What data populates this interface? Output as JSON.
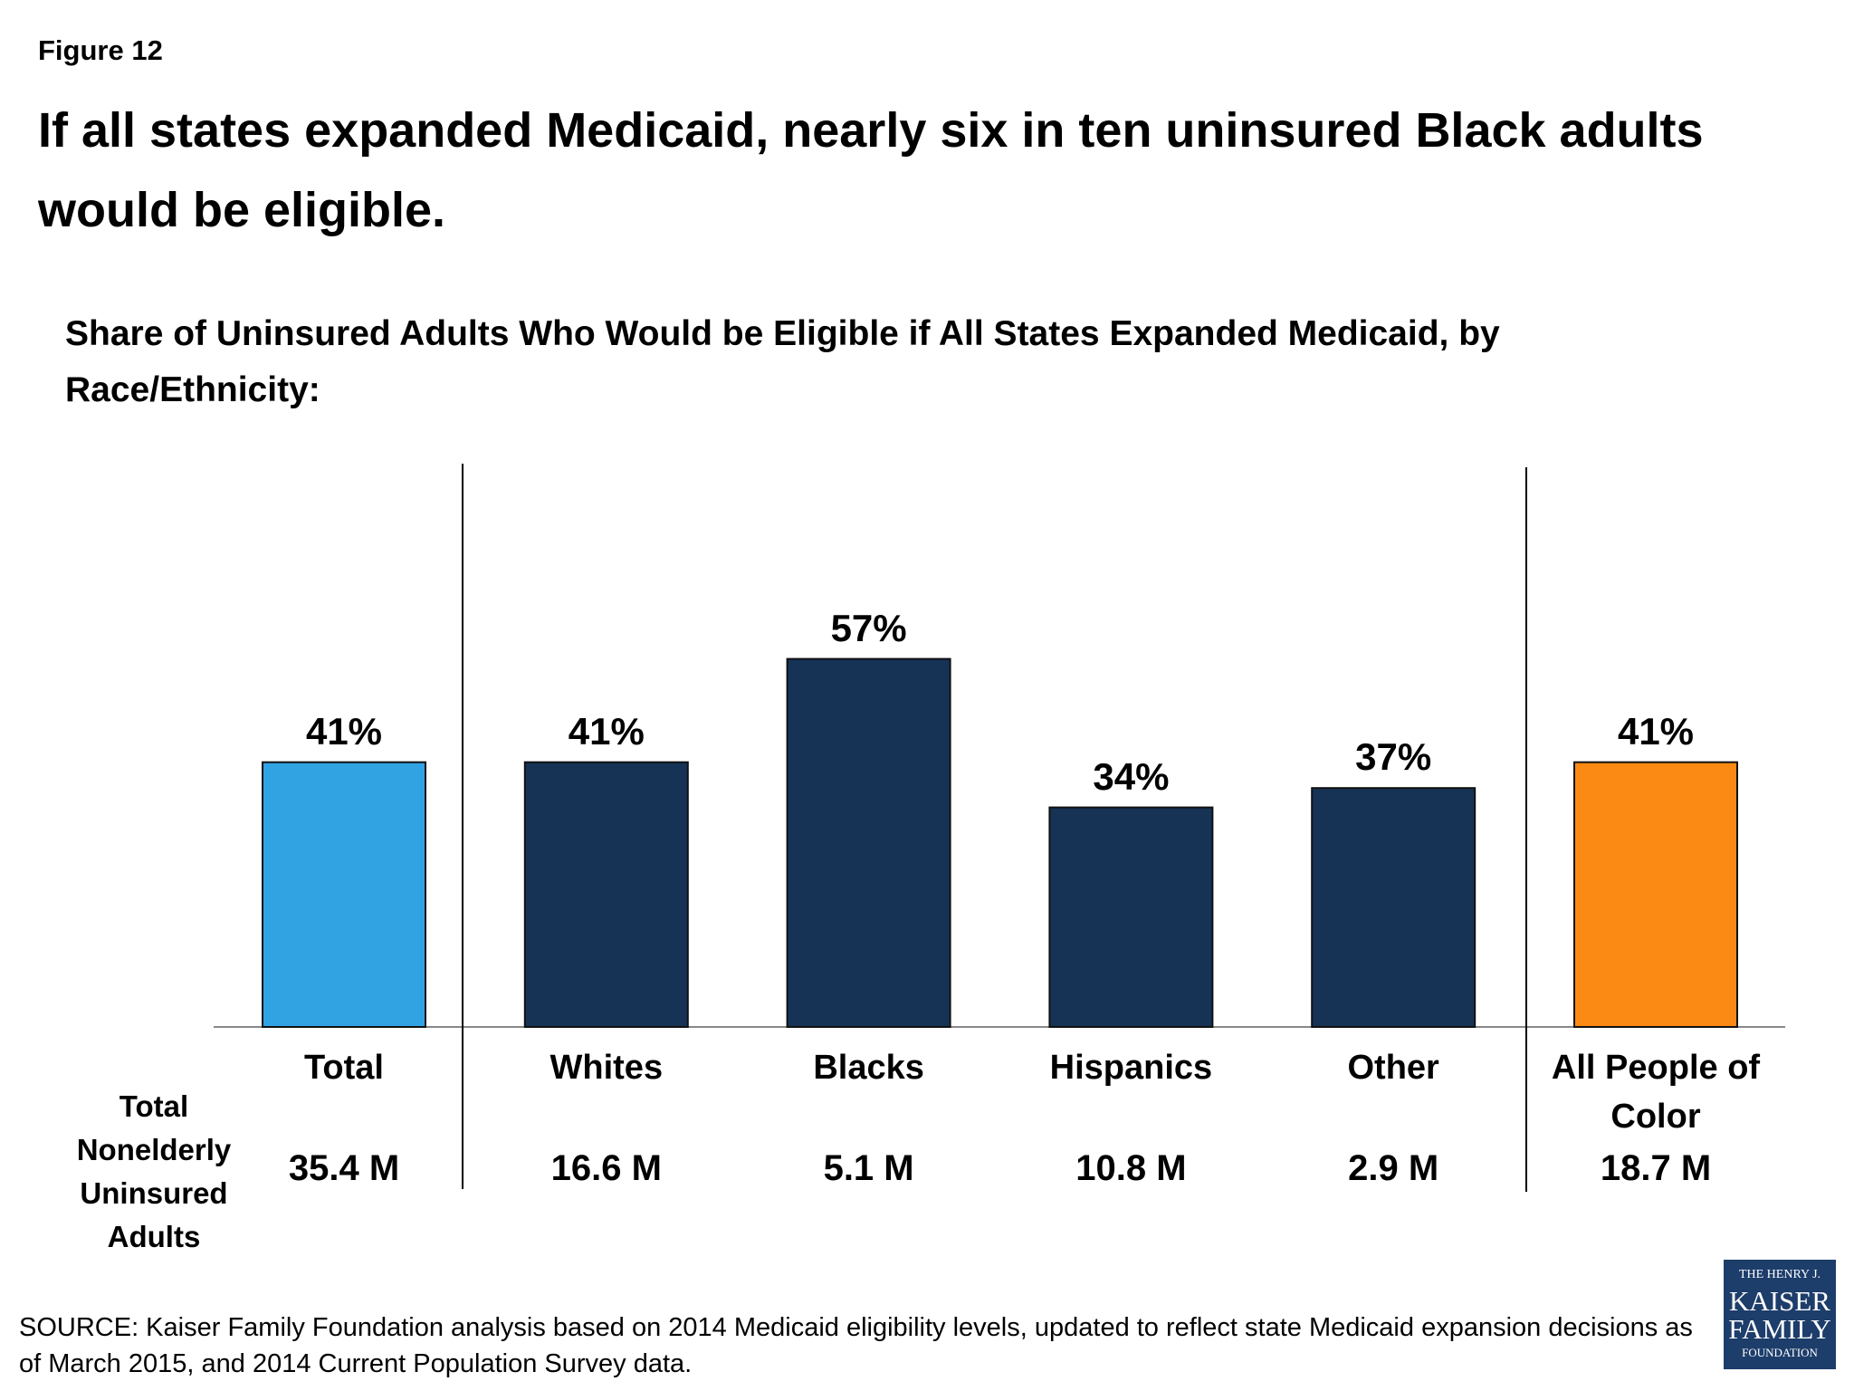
{
  "figure_label": "Figure 12",
  "chart_data": {
    "type": "bar",
    "title": "If all states expanded Medicaid, nearly six in ten uninsured Black adults would be eligible.",
    "subtitle": "Share of Uninsured Adults Who Would be Eligible if All States Expanded Medicaid, by Race/Ethnicity:",
    "categories": [
      "Total",
      "Whites",
      "Blacks",
      "Hispanics",
      "Other",
      "All People of Color"
    ],
    "values": [
      41,
      41,
      57,
      34,
      37,
      41
    ],
    "value_labels": [
      "41%",
      "41%",
      "57%",
      "34%",
      "37%",
      "41%"
    ],
    "colors": [
      "#31a2e2",
      "#163356",
      "#163356",
      "#163356",
      "#163356",
      "#fb8a14"
    ],
    "row_label": "Total Nonelderly Uninsured Adults",
    "row_values": [
      "35.4 M",
      "16.6 M",
      "5.1 M",
      "10.8 M",
      "2.9 M",
      "18.7 M"
    ]
  },
  "source": "SOURCE: Kaiser Family Foundation analysis based on 2014 Medicaid eligibility levels, updated to reflect state Medicaid expansion decisions as of March 2015,  and 2014 Current Population Survey data.",
  "logo": {
    "line1": "THE HENRY J.",
    "line2": "KAISER",
    "line3": "FAMILY",
    "line4": "FOUNDATION"
  }
}
